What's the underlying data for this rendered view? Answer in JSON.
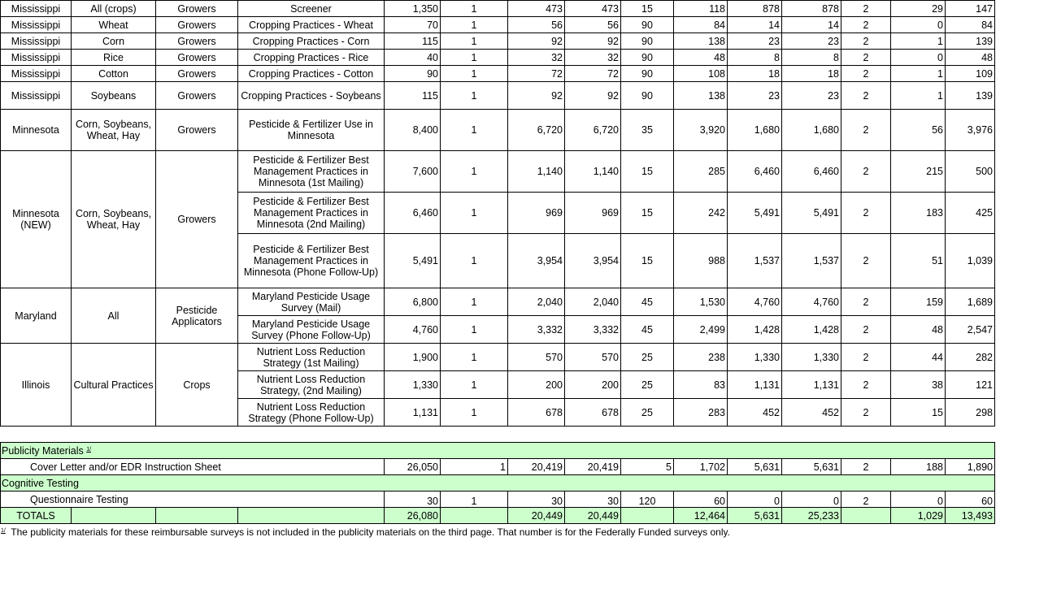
{
  "groups": [
    {
      "state": "Mississippi",
      "crop": "All (crops)",
      "target": "Growers",
      "surveys": [
        {
          "name": "Screener",
          "values": [
            "1,350",
            "1",
            "473",
            "473",
            "15",
            "118",
            "878",
            "878",
            "2",
            "29",
            "147"
          ]
        }
      ]
    },
    {
      "state": "Mississippi",
      "crop": "Wheat",
      "target": "Growers",
      "surveys": [
        {
          "name": "Cropping Practices - Wheat",
          "values": [
            "70",
            "1",
            "56",
            "56",
            "90",
            "84",
            "14",
            "14",
            "2",
            "0",
            "84"
          ]
        }
      ]
    },
    {
      "state": "Mississippi",
      "crop": "Corn",
      "target": "Growers",
      "surveys": [
        {
          "name": "Cropping Practices - Corn",
          "values": [
            "115",
            "1",
            "92",
            "92",
            "90",
            "138",
            "23",
            "23",
            "2",
            "1",
            "139"
          ]
        }
      ]
    },
    {
      "state": "Mississippi",
      "crop": "Rice",
      "target": "Growers",
      "surveys": [
        {
          "name": "Cropping Practices - Rice",
          "values": [
            "40",
            "1",
            "32",
            "32",
            "90",
            "48",
            "8",
            "8",
            "2",
            "0",
            "48"
          ]
        }
      ]
    },
    {
      "state": "Mississippi",
      "crop": "Cotton",
      "target": "Growers",
      "surveys": [
        {
          "name": "Cropping Practices - Cotton",
          "values": [
            "90",
            "1",
            "72",
            "72",
            "90",
            "108",
            "18",
            "18",
            "2",
            "1",
            "109"
          ]
        }
      ]
    },
    {
      "state": "Mississippi",
      "crop": "Soybeans",
      "target": "Growers",
      "surveys": [
        {
          "name": "Cropping Practices - Soybeans",
          "values": [
            "115",
            "1",
            "92",
            "92",
            "90",
            "138",
            "23",
            "23",
            "2",
            "1",
            "139"
          ]
        }
      ]
    },
    {
      "state": "Minnesota",
      "crop": "Corn, Soybeans, Wheat, Hay",
      "target": "Growers",
      "surveys": [
        {
          "name": "Pesticide & Fertilizer Use in Minnesota",
          "values": [
            "8,400",
            "1",
            "6,720",
            "6,720",
            "35",
            "3,920",
            "1,680",
            "1,680",
            "2",
            "56",
            "3,976"
          ]
        }
      ]
    },
    {
      "state": "Minnesota (NEW)",
      "crop": "Corn, Soybeans, Wheat, Hay",
      "target": "Growers",
      "surveys": [
        {
          "name": "Pesticide & Fertilizer Best Management Practices in Minnesota (1st Mailing)",
          "values": [
            "7,600",
            "1",
            "1,140",
            "1,140",
            "15",
            "285",
            "6,460",
            "6,460",
            "2",
            "215",
            "500"
          ]
        },
        {
          "name": "Pesticide & Fertilizer Best Management Practices in Minnesota (2nd Mailing)",
          "values": [
            "6,460",
            "1",
            "969",
            "969",
            "15",
            "242",
            "5,491",
            "5,491",
            "2",
            "183",
            "425"
          ]
        },
        {
          "name": "Pesticide & Fertilizer Best Management Practices in Minnesota (Phone Follow-Up)",
          "values": [
            "5,491",
            "1",
            "3,954",
            "3,954",
            "15",
            "988",
            "1,537",
            "1,537",
            "2",
            "51",
            "1,039"
          ]
        }
      ]
    },
    {
      "state": "Maryland",
      "crop": "All",
      "target": "Pesticide Applicators",
      "surveys": [
        {
          "name": "Maryland Pesticide Usage Survey (Mail)",
          "values": [
            "6,800",
            "1",
            "2,040",
            "2,040",
            "45",
            "1,530",
            "4,760",
            "4,760",
            "2",
            "159",
            "1,689"
          ]
        },
        {
          "name": "Maryland Pesticide Usage Survey (Phone Follow-Up)",
          "values": [
            "4,760",
            "1",
            "3,332",
            "3,332",
            "45",
            "2,499",
            "1,428",
            "1,428",
            "2",
            "48",
            "2,547"
          ]
        }
      ]
    },
    {
      "state": "Illinois",
      "crop": "Cultural Practices",
      "target": "Crops",
      "surveys": [
        {
          "name": "Nutrient Loss Reduction Strategy (1st Mailing)",
          "values": [
            "1,900",
            "1",
            "570",
            "570",
            "25",
            "238",
            "1,330",
            "1,330",
            "2",
            "44",
            "282"
          ]
        },
        {
          "name": "Nutrient Loss Reduction Strategy, (2nd Mailing)",
          "values": [
            "1,330",
            "1",
            "200",
            "200",
            "25",
            "83",
            "1,131",
            "1,131",
            "2",
            "38",
            "121"
          ]
        },
        {
          "name": "Nutrient Loss Reduction Strategy (Phone Follow-Up)",
          "values": [
            "1,131",
            "1",
            "678",
            "678",
            "25",
            "283",
            "452",
            "452",
            "2",
            "15",
            "298"
          ]
        }
      ]
    }
  ],
  "heights": [
    20,
    20,
    20,
    20,
    20,
    34,
    51,
    [
      51,
      51,
      67
    ],
    [
      34,
      34
    ],
    [
      34,
      34,
      34
    ]
  ],
  "bottom": {
    "publicity_header": "Publicity Materials",
    "publicity_sup": "1/",
    "cover": {
      "name": "Cover Letter and/or EDR Instruction Sheet",
      "values": [
        "26,050",
        "1",
        "20,419",
        "20,419",
        "5",
        "1,702",
        "5,631",
        "5,631",
        "2",
        "188",
        "1,890"
      ]
    },
    "cognitive_header": "Cognitive Testing",
    "questionnaire": {
      "name": "Questionnaire Testing",
      "values": [
        "30",
        "1",
        "30",
        "30",
        "120",
        "60",
        "0",
        "0",
        "2",
        "0",
        "60"
      ]
    },
    "totals": {
      "label": "TOTALS",
      "values": [
        "26,080",
        "",
        "20,449",
        "20,449",
        "",
        "12,464",
        "5,631",
        "25,233",
        "",
        "1,029",
        "13,493"
      ]
    }
  },
  "footnote": {
    "mark": "1/",
    "text": "The publicity materials for these reimbursable surveys is not included in the publicity materials on the third page.  That number is for the Federally Funded surveys only."
  }
}
